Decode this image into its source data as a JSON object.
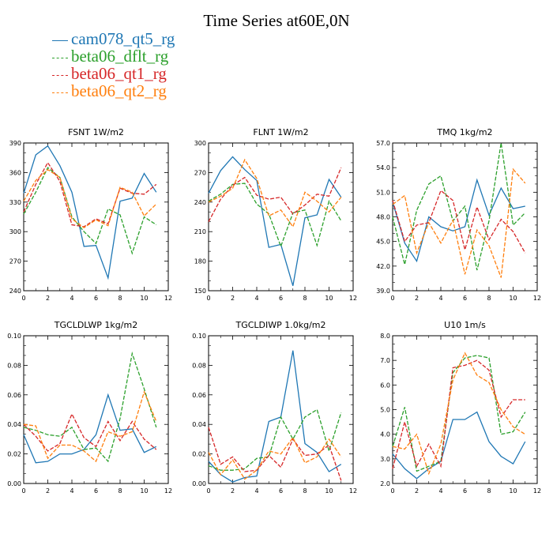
{
  "title": "Time Series at60E,0N",
  "colors": {
    "cam078": "#1f77b4",
    "beta06_dflt": "#2ca02c",
    "beta06_qt1": "#d62728",
    "beta06_qt2": "#ff7f0e"
  },
  "chart_data": [
    {
      "type": "line",
      "title": "FSNT 1W/m2",
      "x": [
        0,
        1,
        2,
        3,
        4,
        5,
        6,
        7,
        8,
        9,
        10,
        11
      ],
      "xlim": [
        0,
        12
      ],
      "xticks": [
        "0",
        "2",
        "4",
        "6",
        "8",
        "10",
        "12"
      ],
      "ylim": [
        240,
        390
      ],
      "yticks": [
        "240",
        "270",
        "300",
        "330",
        "360",
        "390"
      ],
      "series": [
        {
          "name": "cam078_qt5_rg",
          "values": [
            339,
            378,
            387,
            367,
            340,
            285,
            286,
            253,
            331,
            334,
            359,
            340
          ]
        },
        {
          "name": "beta06_dflt_rg",
          "values": [
            318,
            340,
            365,
            355,
            315,
            300,
            288,
            323,
            317,
            278,
            315,
            307
          ]
        },
        {
          "name": "beta06_qt1_rg",
          "values": [
            320,
            348,
            370,
            351,
            307,
            305,
            313,
            308,
            344,
            339,
            338,
            348
          ]
        },
        {
          "name": "beta06_qt2_rg",
          "values": [
            331,
            352,
            363,
            355,
            313,
            304,
            312,
            306,
            345,
            340,
            316,
            328
          ]
        }
      ]
    },
    {
      "type": "line",
      "title": "FLNT 1W/m2",
      "x": [
        0,
        1,
        2,
        3,
        4,
        5,
        6,
        7,
        8,
        9,
        10,
        11
      ],
      "xlim": [
        0,
        12
      ],
      "xticks": [
        "0",
        "2",
        "4",
        "6",
        "8",
        "10",
        "12"
      ],
      "ylim": [
        150,
        300
      ],
      "yticks": [
        "150",
        "180",
        "210",
        "240",
        "270",
        "300"
      ],
      "series": [
        {
          "name": "cam078_qt5_rg",
          "values": [
            249,
            272,
            286,
            273,
            262,
            194,
            197,
            155,
            224,
            227,
            263,
            245
          ]
        },
        {
          "name": "beta06_dflt_rg",
          "values": [
            241,
            248,
            258,
            259,
            238,
            228,
            195,
            229,
            232,
            196,
            241,
            221
          ]
        },
        {
          "name": "beta06_qt1_rg",
          "values": [
            220,
            243,
            257,
            265,
            247,
            243,
            245,
            228,
            237,
            248,
            246,
            275
          ]
        },
        {
          "name": "beta06_qt2_rg",
          "values": [
            240,
            246,
            254,
            283,
            264,
            226,
            232,
            215,
            250,
            241,
            230,
            245
          ]
        }
      ]
    },
    {
      "type": "line",
      "title": "TMQ 1kg/m2",
      "x": [
        0,
        1,
        2,
        3,
        4,
        5,
        6,
        7,
        8,
        9,
        10,
        11
      ],
      "xlim": [
        0,
        12
      ],
      "xticks": [
        "0",
        "2",
        "4",
        "6",
        "8",
        "10",
        "12"
      ],
      "ylim": [
        39.0,
        57.0
      ],
      "yticks": [
        "39.0",
        "42.0",
        "45.0",
        "48.0",
        "51.0",
        "54.0",
        "57.0"
      ],
      "series": [
        {
          "name": "cam078_qt5_rg",
          "values": [
            49.8,
            44.8,
            42.6,
            48.0,
            46.8,
            46.3,
            46.8,
            52.5,
            48.2,
            51.5,
            49.0,
            49.3
          ]
        },
        {
          "name": "beta06_dflt_rg",
          "values": [
            48.0,
            42.2,
            48.8,
            52.0,
            53.0,
            47.5,
            49.3,
            41.5,
            47.5,
            57.0,
            47.0,
            48.5
          ]
        },
        {
          "name": "beta06_qt1_rg",
          "values": [
            50.0,
            45.0,
            47.0,
            47.3,
            51.2,
            50.0,
            44.0,
            49.2,
            45.2,
            47.7,
            46.2,
            43.6
          ]
        },
        {
          "name": "beta06_qt2_rg",
          "values": [
            49.5,
            50.6,
            43.6,
            47.3,
            44.8,
            47.6,
            41.0,
            46.4,
            44.5,
            40.6,
            53.8,
            52.1
          ]
        }
      ]
    },
    {
      "type": "line",
      "title": "TGCLDLWP 1kg/m2",
      "x": [
        0,
        1,
        2,
        3,
        4,
        5,
        6,
        7,
        8,
        9,
        10,
        11
      ],
      "xlim": [
        0,
        12
      ],
      "xticks": [
        "0",
        "2",
        "4",
        "6",
        "8",
        "10",
        "12"
      ],
      "ylim": [
        0.0,
        0.1
      ],
      "yticks": [
        "0.00",
        "0.02",
        "0.04",
        "0.06",
        "0.08",
        "0.10"
      ],
      "series": [
        {
          "name": "cam078_qt5_rg",
          "values": [
            0.033,
            0.014,
            0.015,
            0.02,
            0.02,
            0.023,
            0.033,
            0.06,
            0.036,
            0.037,
            0.021,
            0.025
          ]
        },
        {
          "name": "beta06_dflt_rg",
          "values": [
            0.038,
            0.036,
            0.033,
            0.032,
            0.038,
            0.023,
            0.024,
            0.015,
            0.044,
            0.088,
            0.064,
            0.038
          ]
        },
        {
          "name": "beta06_qt1_rg",
          "values": [
            0.04,
            0.032,
            0.022,
            0.027,
            0.047,
            0.031,
            0.025,
            0.042,
            0.029,
            0.042,
            0.03,
            0.023
          ]
        },
        {
          "name": "beta06_qt2_rg",
          "values": [
            0.04,
            0.039,
            0.017,
            0.026,
            0.026,
            0.022,
            0.015,
            0.035,
            0.032,
            0.035,
            0.062,
            0.042
          ]
        }
      ]
    },
    {
      "type": "line",
      "title": "TGCLDIWP 1.0kg/m2",
      "x": [
        0,
        1,
        2,
        3,
        4,
        5,
        6,
        7,
        8,
        9,
        10,
        11
      ],
      "xlim": [
        0,
        12
      ],
      "xticks": [
        "0",
        "2",
        "4",
        "6",
        "8",
        "10",
        "12"
      ],
      "ylim": [
        0.0,
        0.1
      ],
      "yticks": [
        "0.00",
        "0.02",
        "0.04",
        "0.06",
        "0.08",
        "0.10"
      ],
      "series": [
        {
          "name": "cam078_qt5_rg",
          "values": [
            0.015,
            0.006,
            0.001,
            0.004,
            0.005,
            0.042,
            0.045,
            0.09,
            0.027,
            0.021,
            0.008,
            0.013
          ]
        },
        {
          "name": "beta06_dflt_rg",
          "values": [
            0.012,
            0.009,
            0.009,
            0.01,
            0.017,
            0.018,
            0.045,
            0.03,
            0.045,
            0.05,
            0.022,
            0.048
          ]
        },
        {
          "name": "beta06_qt1_rg",
          "values": [
            0.038,
            0.013,
            0.018,
            0.008,
            0.009,
            0.019,
            0.011,
            0.03,
            0.019,
            0.02,
            0.026,
            0.002
          ]
        },
        {
          "name": "beta06_qt2_rg",
          "values": [
            0.021,
            0.006,
            0.016,
            0.003,
            0.009,
            0.022,
            0.02,
            0.031,
            0.014,
            0.018,
            0.03,
            0.018
          ]
        }
      ]
    },
    {
      "type": "line",
      "title": "U10 1m/s",
      "x": [
        0,
        1,
        2,
        3,
        4,
        5,
        6,
        7,
        8,
        9,
        10,
        11
      ],
      "xlim": [
        0,
        12
      ],
      "xticks": [
        "0",
        "2",
        "4",
        "6",
        "8",
        "10",
        "12"
      ],
      "ylim": [
        2.0,
        8.0
      ],
      "yticks": [
        "2.0",
        "3.0",
        "4.0",
        "5.0",
        "6.0",
        "7.0",
        "8.0"
      ],
      "series": [
        {
          "name": "cam078_qt5_rg",
          "values": [
            3.2,
            2.6,
            2.2,
            2.6,
            2.9,
            4.6,
            4.6,
            4.9,
            3.7,
            3.1,
            2.8,
            3.7
          ]
        },
        {
          "name": "beta06_dflt_rg",
          "values": [
            3.5,
            5.1,
            2.5,
            2.7,
            2.9,
            6.5,
            7.1,
            7.2,
            7.1,
            4.0,
            4.1,
            4.9
          ]
        },
        {
          "name": "beta06_qt1_rg",
          "values": [
            2.6,
            4.5,
            2.7,
            3.6,
            2.7,
            6.7,
            6.8,
            7.0,
            6.6,
            4.7,
            5.4,
            5.4
          ]
        },
        {
          "name": "beta06_qt2_rg",
          "values": [
            3.5,
            3.4,
            4.0,
            2.4,
            3.6,
            6.2,
            7.3,
            6.4,
            6.1,
            5.0,
            4.3,
            4.0
          ]
        }
      ]
    }
  ]
}
